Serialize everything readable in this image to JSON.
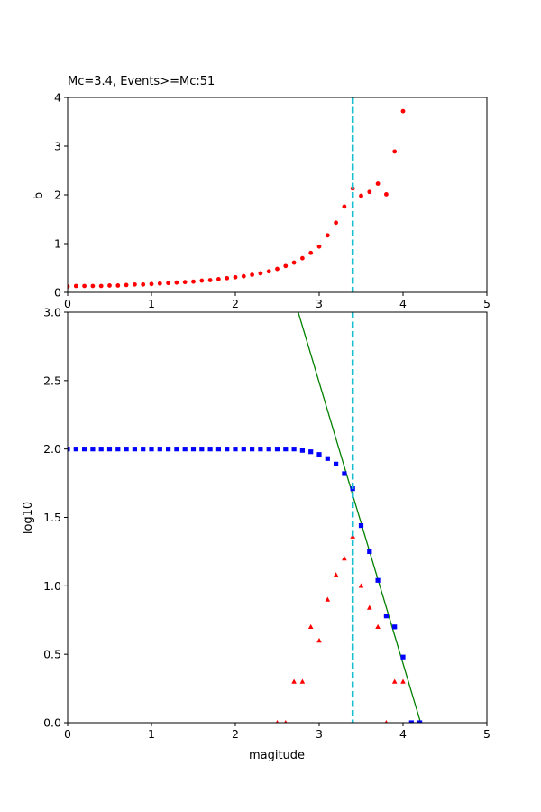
{
  "chart_data": [
    {
      "type": "scatter",
      "title": "Mc=3.4, Events>=Mc:51",
      "xlabel": "",
      "ylabel": "b",
      "xlim": [
        0,
        5
      ],
      "ylim": [
        0,
        4
      ],
      "xticks": [
        "0",
        "1",
        "2",
        "3",
        "4",
        "5"
      ],
      "yticks": [
        "0",
        "1",
        "2",
        "3",
        "4"
      ],
      "grid": false,
      "vline": {
        "x": 3.4,
        "color": "#17becf",
        "style": "dashed"
      },
      "series": [
        {
          "marker": "circle",
          "color": "#ff0000",
          "x": [
            0.0,
            0.1,
            0.2,
            0.3,
            0.4,
            0.5,
            0.6,
            0.7,
            0.8,
            0.9,
            1.0,
            1.1,
            1.2,
            1.3,
            1.4,
            1.5,
            1.6,
            1.7,
            1.8,
            1.9,
            2.0,
            2.1,
            2.2,
            2.3,
            2.4,
            2.5,
            2.6,
            2.7,
            2.8,
            2.9,
            3.0,
            3.1,
            3.2,
            3.3,
            3.4,
            3.5,
            3.6,
            3.7,
            3.8,
            3.9,
            4.0
          ],
          "y": [
            0.12,
            0.13,
            0.13,
            0.13,
            0.13,
            0.14,
            0.14,
            0.15,
            0.16,
            0.16,
            0.17,
            0.18,
            0.19,
            0.2,
            0.21,
            0.22,
            0.24,
            0.25,
            0.27,
            0.29,
            0.31,
            0.33,
            0.36,
            0.39,
            0.43,
            0.48,
            0.54,
            0.61,
            0.7,
            0.81,
            0.94,
            1.17,
            1.43,
            1.76,
            2.13,
            1.98,
            2.06,
            2.23,
            2.01,
            2.89,
            3.72
          ]
        }
      ]
    },
    {
      "type": "scatter",
      "title": "",
      "xlabel": "magitude",
      "ylabel": "log10",
      "xlim": [
        0,
        5
      ],
      "ylim": [
        0,
        3.0
      ],
      "xticks": [
        "0",
        "1",
        "2",
        "3",
        "4",
        "5"
      ],
      "yticks": [
        "0.0",
        "0.5",
        "1.0",
        "1.5",
        "2.0",
        "2.5",
        "3.0"
      ],
      "grid": false,
      "vline": {
        "x": 3.4,
        "color": "#17becf",
        "style": "dashed"
      },
      "fit_line": {
        "color": "#008000",
        "x": [
          2.75,
          4.21
        ],
        "y": [
          3.0,
          0.0
        ]
      },
      "series": [
        {
          "marker": "square",
          "color": "#0000ff",
          "x": [
            0.0,
            0.1,
            0.2,
            0.3,
            0.4,
            0.5,
            0.6,
            0.7,
            0.8,
            0.9,
            1.0,
            1.1,
            1.2,
            1.3,
            1.4,
            1.5,
            1.6,
            1.7,
            1.8,
            1.9,
            2.0,
            2.1,
            2.2,
            2.3,
            2.4,
            2.5,
            2.6,
            2.7,
            2.8,
            2.9,
            3.0,
            3.1,
            3.2,
            3.3,
            3.4,
            3.5,
            3.6,
            3.7,
            3.8,
            3.9,
            4.0,
            4.1,
            4.2
          ],
          "y": [
            2.0,
            2.0,
            2.0,
            2.0,
            2.0,
            2.0,
            2.0,
            2.0,
            2.0,
            2.0,
            2.0,
            2.0,
            2.0,
            2.0,
            2.0,
            2.0,
            2.0,
            2.0,
            2.0,
            2.0,
            2.0,
            2.0,
            2.0,
            2.0,
            2.0,
            2.0,
            2.0,
            2.0,
            1.99,
            1.98,
            1.96,
            1.93,
            1.89,
            1.82,
            1.71,
            1.44,
            1.25,
            1.04,
            0.78,
            0.7,
            0.48,
            0.0,
            0.0
          ]
        },
        {
          "marker": "triangle",
          "color": "#ff0000",
          "x": [
            2.5,
            2.6,
            2.7,
            2.8,
            2.9,
            3.0,
            3.1,
            3.2,
            3.3,
            3.4,
            3.5,
            3.6,
            3.7,
            3.8,
            3.9,
            4.0
          ],
          "y": [
            0.0,
            0.0,
            0.3,
            0.3,
            0.7,
            0.6,
            0.9,
            1.08,
            1.2,
            1.36,
            1.0,
            0.84,
            0.7,
            0.0,
            0.3,
            0.3
          ]
        }
      ]
    }
  ]
}
